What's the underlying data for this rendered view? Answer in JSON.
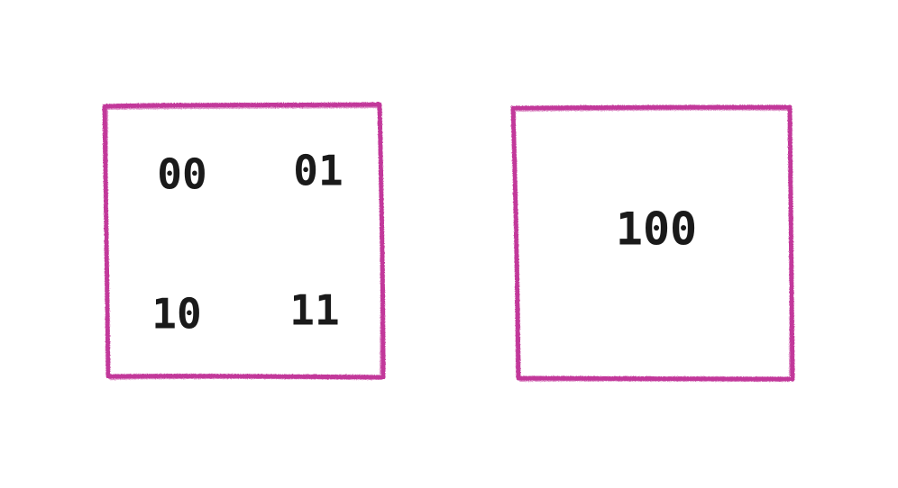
{
  "colors": {
    "frame": "#c2399a",
    "ink": "#1a1a1a",
    "background": "#ffffff"
  },
  "left_box": {
    "codes": [
      "00",
      "01",
      "10",
      "11"
    ]
  },
  "right_box": {
    "code": "100"
  }
}
